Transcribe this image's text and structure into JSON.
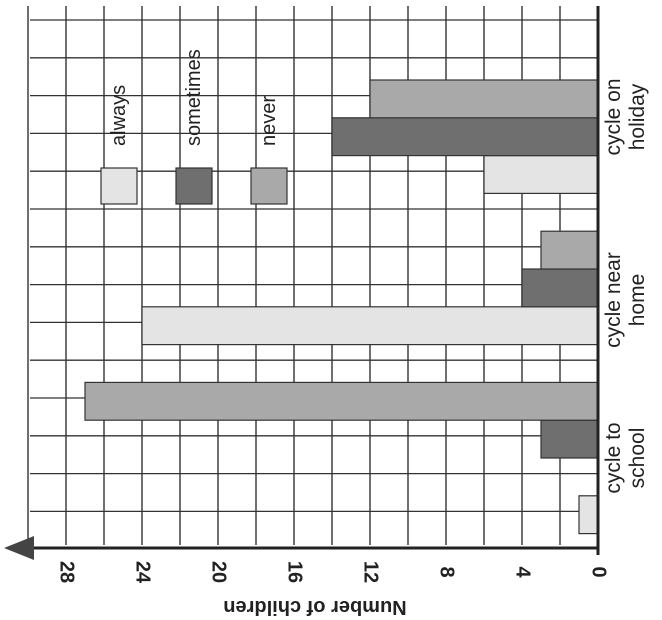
{
  "chart_data": {
    "type": "bar",
    "orientation": "horizontal-rotated",
    "ylabel": "Number of children",
    "xlim": [
      0,
      30
    ],
    "ticks": [
      0,
      4,
      8,
      12,
      16,
      20,
      24,
      28
    ],
    "grid": true,
    "legend_position": "top",
    "categories": [
      {
        "lines": [
          "cycle to",
          "school"
        ]
      },
      {
        "lines": [
          "cycle near",
          "home"
        ]
      },
      {
        "lines": [
          "cycle on",
          "holiday"
        ]
      }
    ],
    "series": [
      {
        "name": "always",
        "color": "#e4e4e4",
        "values": [
          1,
          24,
          6
        ]
      },
      {
        "name": "sometimes",
        "color": "#6f6f6f",
        "values": [
          3,
          4,
          14
        ]
      },
      {
        "name": "never",
        "color": "#a9a9a9",
        "values": [
          27,
          3,
          12
        ]
      }
    ]
  }
}
